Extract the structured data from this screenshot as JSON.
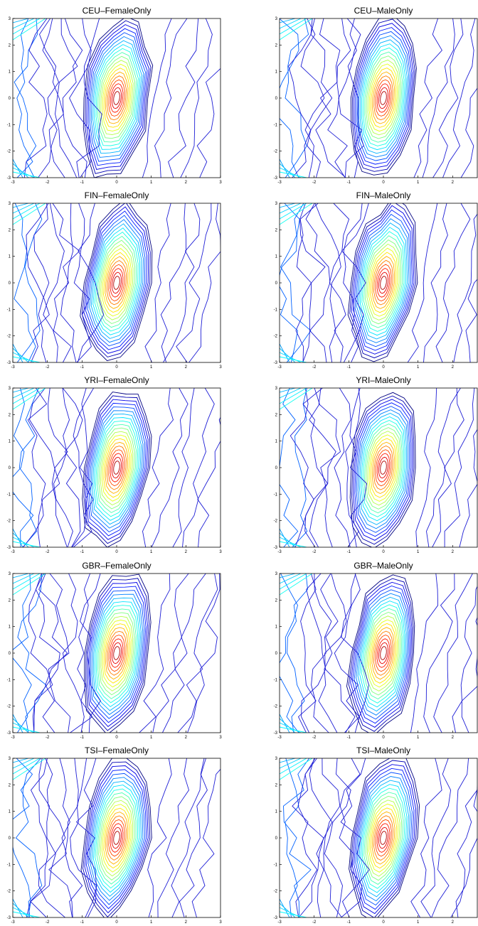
{
  "chart_data": [
    {
      "type": "contour",
      "title": "CEU–FemaleOnly",
      "xlim": [
        -3,
        3
      ],
      "ylim": [
        -3,
        3
      ],
      "xticks": [
        "-3",
        "-2",
        "-1",
        "0",
        "1",
        "2",
        "3"
      ],
      "yticks": [
        "3",
        "2",
        "1",
        "0",
        "-1",
        "-2",
        "-3"
      ],
      "levels": 20,
      "peak": [
        0,
        0
      ],
      "colormap": "jet"
    },
    {
      "type": "contour",
      "title": "CEU–MaleOnly",
      "xlim": [
        -3,
        3
      ],
      "ylim": [
        -3,
        3
      ],
      "xticks": [
        "-3",
        "-2",
        "-1",
        "0",
        "1",
        "2"
      ],
      "yticks": [
        "3",
        "2",
        "1",
        "0",
        "-1",
        "-2",
        "-3"
      ],
      "levels": 20,
      "peak": [
        0,
        0
      ],
      "colormap": "jet"
    },
    {
      "type": "contour",
      "title": "FIN–FemaleOnly",
      "xlim": [
        -3,
        3
      ],
      "ylim": [
        -3,
        3
      ],
      "xticks": [
        "-3",
        "-2",
        "-1",
        "0",
        "1",
        "2",
        "3"
      ],
      "yticks": [
        "3",
        "2",
        "1",
        "0",
        "-1",
        "-2",
        "-3"
      ],
      "levels": 20,
      "peak": [
        0,
        0
      ],
      "colormap": "jet"
    },
    {
      "type": "contour",
      "title": "FIN–MaleOnly",
      "xlim": [
        -3,
        3
      ],
      "ylim": [
        -3,
        3
      ],
      "xticks": [
        "-3",
        "-2",
        "-1",
        "0",
        "1",
        "2"
      ],
      "yticks": [
        "3",
        "2",
        "1",
        "0",
        "-1",
        "-2",
        "-3"
      ],
      "levels": 20,
      "peak": [
        0,
        0
      ],
      "colormap": "jet"
    },
    {
      "type": "contour",
      "title": "YRI–FemaleOnly",
      "xlim": [
        -3,
        3
      ],
      "ylim": [
        -3,
        3
      ],
      "xticks": [
        "-3",
        "-2",
        "-1",
        "0",
        "1",
        "2",
        "3"
      ],
      "yticks": [
        "3",
        "2",
        "1",
        "0",
        "-1",
        "-2",
        "-3"
      ],
      "levels": 20,
      "peak": [
        0,
        0
      ],
      "colormap": "jet"
    },
    {
      "type": "contour",
      "title": "YRI–MaleOnly",
      "xlim": [
        -3,
        3
      ],
      "ylim": [
        -3,
        3
      ],
      "xticks": [
        "-3",
        "-2",
        "-1",
        "0",
        "1",
        "2"
      ],
      "yticks": [
        "3",
        "2",
        "1",
        "0",
        "-1",
        "-2",
        "-3"
      ],
      "levels": 20,
      "peak": [
        0,
        0
      ],
      "colormap": "jet"
    },
    {
      "type": "contour",
      "title": "GBR–FemaleOnly",
      "xlim": [
        -3,
        3
      ],
      "ylim": [
        -3,
        3
      ],
      "xticks": [
        "-3",
        "-2",
        "-1",
        "0",
        "1",
        "2",
        "3"
      ],
      "yticks": [
        "3",
        "2",
        "1",
        "0",
        "-1",
        "-2",
        "-3"
      ],
      "levels": 20,
      "peak": [
        0,
        0
      ],
      "colormap": "jet"
    },
    {
      "type": "contour",
      "title": "GBR–MaleOnly",
      "xlim": [
        -3,
        3
      ],
      "ylim": [
        -3,
        3
      ],
      "xticks": [
        "-3",
        "-2",
        "-1",
        "0",
        "1",
        "2"
      ],
      "yticks": [
        "3",
        "2",
        "1",
        "0",
        "-1",
        "-2",
        "-3"
      ],
      "levels": 20,
      "peak": [
        0,
        0
      ],
      "colormap": "jet"
    },
    {
      "type": "contour",
      "title": "TSI–FemaleOnly",
      "xlim": [
        -3,
        3
      ],
      "ylim": [
        -3,
        3
      ],
      "xticks": [
        "-3",
        "-2",
        "-1",
        "0",
        "1",
        "2",
        "3"
      ],
      "yticks": [
        "3",
        "2",
        "1",
        "0",
        "-1",
        "-2",
        "-3"
      ],
      "levels": 20,
      "peak": [
        0,
        0
      ],
      "colormap": "jet"
    },
    {
      "type": "contour",
      "title": "TSI–MaleOnly",
      "xlim": [
        -3,
        3
      ],
      "ylim": [
        -3,
        3
      ],
      "xticks": [
        "-3",
        "-2",
        "-1",
        "0",
        "1",
        "2"
      ],
      "yticks": [
        "3",
        "2",
        "1",
        "0",
        "-1",
        "-2",
        "-3"
      ],
      "levels": 20,
      "peak": [
        0,
        0
      ],
      "colormap": "jet"
    }
  ]
}
